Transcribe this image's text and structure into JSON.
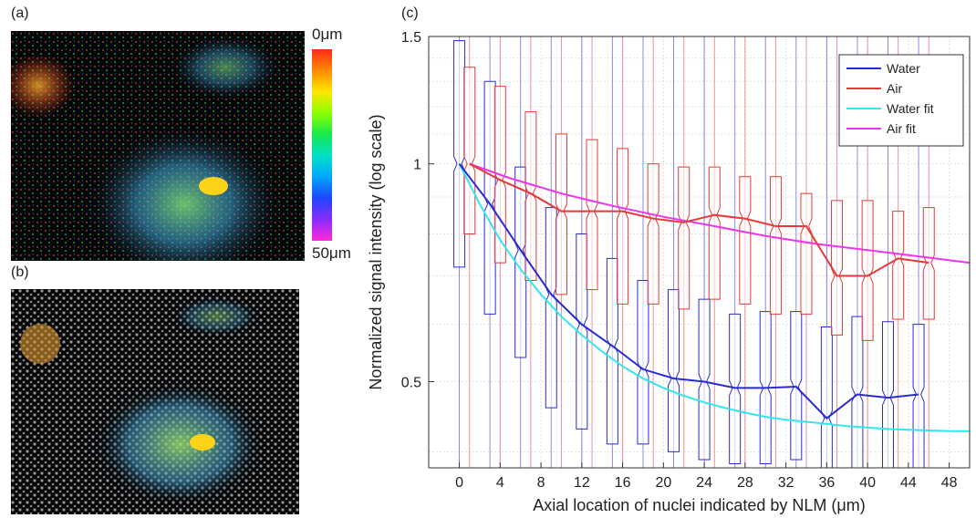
{
  "panels": {
    "a_label": "(a)",
    "b_label": "(b)",
    "c_label": "(c)",
    "colorbar_top": "0μm",
    "colorbar_bottom": "50μm",
    "colorbar_colors": [
      "#ff2a1a",
      "#ff8a00",
      "#ffe600",
      "#8cff00",
      "#16e84c",
      "#00e0c8",
      "#00a6ff",
      "#1e46ff",
      "#8a2cff",
      "#ff2ad8"
    ]
  },
  "chart_data": {
    "type": "box",
    "title": "",
    "xlabel": "Axial location of nuclei indicated by NLM (μm)",
    "ylabel": "Normalized signal intensity (log scale)",
    "yscale": "log",
    "xlim": [
      -3,
      50
    ],
    "ylim": [
      0.38,
      1.5
    ],
    "x_ticks": [
      0,
      4,
      8,
      12,
      16,
      20,
      24,
      28,
      32,
      36,
      40,
      44,
      48
    ],
    "y_ticks": [
      0.5,
      1,
      1.5
    ],
    "y_tick_labels": [
      "0.5",
      "1",
      "1.5"
    ],
    "grid": true,
    "legend_position": "top-right",
    "legend": [
      "Water",
      "Air",
      "Water fit",
      "Air fit"
    ],
    "colors": {
      "water": "#2b2bd6",
      "air": "#e83838",
      "water_fit": "#33e6ee",
      "air_fit": "#ee33ee"
    },
    "series": [
      {
        "name": "Water",
        "x": [
          0,
          3,
          6,
          9,
          12,
          15,
          18,
          21,
          24,
          27,
          30,
          33,
          36,
          39,
          42,
          45
        ],
        "median": [
          1.0,
          0.88,
          0.76,
          0.66,
          0.6,
          0.56,
          0.52,
          0.505,
          0.5,
          0.49,
          0.49,
          0.492,
          0.445,
          0.48,
          0.475,
          0.48
        ],
        "q1": [
          0.72,
          0.62,
          0.54,
          0.46,
          0.43,
          0.41,
          0.41,
          0.4,
          0.39,
          0.385,
          0.385,
          0.39,
          0.38,
          0.38,
          0.38,
          0.38
        ],
        "q3": [
          1.48,
          1.3,
          0.99,
          0.87,
          0.8,
          0.74,
          0.69,
          0.67,
          0.65,
          0.62,
          0.625,
          0.625,
          0.595,
          0.615,
          0.605,
          0.6
        ]
      },
      {
        "name": "Air",
        "x": [
          1,
          4,
          7,
          10,
          13,
          16,
          19,
          22,
          25,
          28,
          31,
          34,
          37,
          40,
          43,
          46
        ],
        "median": [
          1.0,
          0.95,
          0.91,
          0.86,
          0.86,
          0.86,
          0.84,
          0.83,
          0.85,
          0.84,
          0.82,
          0.82,
          0.7,
          0.7,
          0.74,
          0.73
        ],
        "q1": [
          0.8,
          0.73,
          0.69,
          0.66,
          0.67,
          0.64,
          0.64,
          0.63,
          0.65,
          0.64,
          0.62,
          0.62,
          0.58,
          0.57,
          0.61,
          0.61
        ],
        "q3": [
          1.36,
          1.28,
          1.18,
          1.1,
          1.08,
          1.05,
          1.0,
          0.99,
          0.99,
          0.96,
          0.96,
          0.91,
          0.89,
          0.89,
          0.86,
          0.87
        ]
      },
      {
        "name": "Water fit",
        "x": [
          0,
          2,
          4,
          6,
          8,
          10,
          12,
          14,
          16,
          18,
          20,
          22,
          24,
          26,
          28,
          30,
          32,
          34,
          36,
          38,
          40,
          42,
          44,
          46,
          48,
          50
        ],
        "y": [
          1.0,
          0.88,
          0.785,
          0.715,
          0.66,
          0.615,
          0.58,
          0.55,
          0.525,
          0.505,
          0.49,
          0.478,
          0.468,
          0.46,
          0.453,
          0.447,
          0.443,
          0.44,
          0.437,
          0.434,
          0.432,
          0.43,
          0.429,
          0.428,
          0.427,
          0.427
        ]
      },
      {
        "name": "Air fit",
        "x": [
          1,
          5,
          10,
          15,
          20,
          25,
          30,
          35,
          40,
          45,
          50
        ],
        "y": [
          1.0,
          0.955,
          0.91,
          0.875,
          0.845,
          0.82,
          0.795,
          0.775,
          0.76,
          0.745,
          0.73
        ]
      }
    ]
  }
}
